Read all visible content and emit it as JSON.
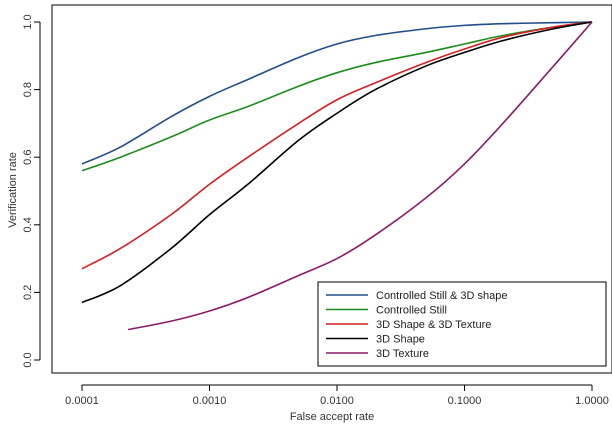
{
  "chart_data": {
    "type": "line",
    "title": "",
    "xlabel": "False accept rate",
    "ylabel": "Verification rate",
    "x_scale": "log",
    "xlim": [
      0.0001,
      1.0
    ],
    "ylim": [
      0.0,
      1.0
    ],
    "x_ticks": [
      0.0001,
      0.001,
      0.01,
      0.1,
      1.0
    ],
    "x_tick_labels": [
      "0.0001",
      "0.0010",
      "0.0100",
      "0.1000",
      "1.0000"
    ],
    "y_ticks": [
      0.0,
      0.2,
      0.4,
      0.6,
      0.8,
      1.0
    ],
    "y_tick_labels": [
      "0.0",
      "0.2",
      "0.4",
      "0.6",
      "0.8",
      "1.0"
    ],
    "grid": false,
    "legend_position": "bottom-right",
    "series": [
      {
        "name": "Controlled Still & 3D shape",
        "color": "#1f4e8c",
        "x": [
          0.0001,
          0.0002,
          0.0005,
          0.001,
          0.002,
          0.005,
          0.01,
          0.02,
          0.05,
          0.1,
          0.2,
          0.5,
          1.0
        ],
        "y": [
          0.58,
          0.63,
          0.72,
          0.78,
          0.83,
          0.895,
          0.935,
          0.96,
          0.98,
          0.99,
          0.995,
          0.998,
          1.0
        ]
      },
      {
        "name": "Controlled Still",
        "color": "#1e8c1e",
        "x": [
          0.0001,
          0.0002,
          0.0005,
          0.001,
          0.002,
          0.005,
          0.01,
          0.02,
          0.05,
          0.1,
          0.2,
          0.5,
          1.0
        ],
        "y": [
          0.56,
          0.6,
          0.66,
          0.71,
          0.75,
          0.81,
          0.85,
          0.88,
          0.91,
          0.935,
          0.96,
          0.985,
          1.0
        ]
      },
      {
        "name": "3D Shape & 3D Texture",
        "color": "#d42020",
        "x": [
          0.0001,
          0.0002,
          0.0005,
          0.001,
          0.002,
          0.005,
          0.01,
          0.02,
          0.05,
          0.1,
          0.2,
          0.5,
          1.0
        ],
        "y": [
          0.27,
          0.33,
          0.43,
          0.52,
          0.6,
          0.7,
          0.77,
          0.82,
          0.88,
          0.92,
          0.955,
          0.985,
          1.0
        ]
      },
      {
        "name": "3D Shape",
        "color": "#000000",
        "x": [
          0.0001,
          0.0002,
          0.0005,
          0.001,
          0.002,
          0.005,
          0.01,
          0.02,
          0.05,
          0.1,
          0.2,
          0.5,
          1.0
        ],
        "y": [
          0.17,
          0.22,
          0.33,
          0.43,
          0.52,
          0.65,
          0.73,
          0.8,
          0.87,
          0.91,
          0.945,
          0.98,
          1.0
        ]
      },
      {
        "name": "3D Texture",
        "color": "#8b1a6b",
        "x": [
          0.00023,
          0.0005,
          0.001,
          0.002,
          0.005,
          0.01,
          0.02,
          0.05,
          0.1,
          0.2,
          0.5,
          1.0
        ],
        "y": [
          0.09,
          0.115,
          0.145,
          0.185,
          0.25,
          0.3,
          0.37,
          0.48,
          0.58,
          0.7,
          0.87,
          1.0
        ]
      }
    ]
  }
}
